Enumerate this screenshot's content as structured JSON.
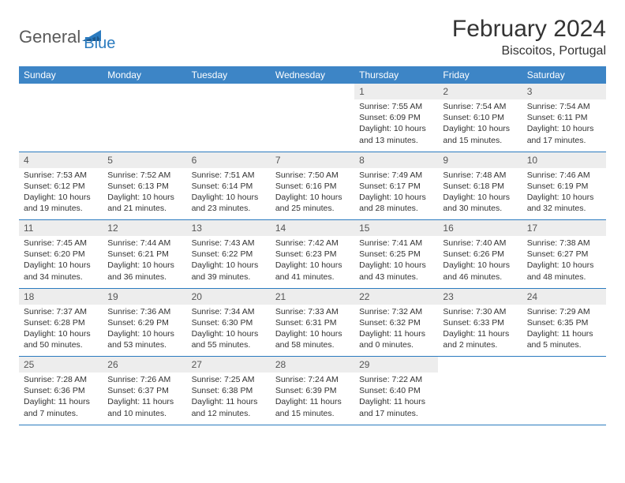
{
  "logo": {
    "text1": "General",
    "text2": "Blue"
  },
  "title": "February 2024",
  "location": "Biscoitos, Portugal",
  "colors": {
    "header_bg": "#3d85c6",
    "header_text": "#ffffff",
    "daynum_bg": "#ededed",
    "border": "#2b7bbf",
    "logo_gray": "#5a5a5a",
    "logo_blue": "#2b7bbf"
  },
  "weekdays": [
    "Sunday",
    "Monday",
    "Tuesday",
    "Wednesday",
    "Thursday",
    "Friday",
    "Saturday"
  ],
  "weeks": [
    {
      "nums": [
        "",
        "",
        "",
        "",
        "1",
        "2",
        "3"
      ],
      "cells": [
        null,
        null,
        null,
        null,
        {
          "sunrise": "Sunrise: 7:55 AM",
          "sunset": "Sunset: 6:09 PM",
          "day1": "Daylight: 10 hours",
          "day2": "and 13 minutes."
        },
        {
          "sunrise": "Sunrise: 7:54 AM",
          "sunset": "Sunset: 6:10 PM",
          "day1": "Daylight: 10 hours",
          "day2": "and 15 minutes."
        },
        {
          "sunrise": "Sunrise: 7:54 AM",
          "sunset": "Sunset: 6:11 PM",
          "day1": "Daylight: 10 hours",
          "day2": "and 17 minutes."
        }
      ]
    },
    {
      "nums": [
        "4",
        "5",
        "6",
        "7",
        "8",
        "9",
        "10"
      ],
      "cells": [
        {
          "sunrise": "Sunrise: 7:53 AM",
          "sunset": "Sunset: 6:12 PM",
          "day1": "Daylight: 10 hours",
          "day2": "and 19 minutes."
        },
        {
          "sunrise": "Sunrise: 7:52 AM",
          "sunset": "Sunset: 6:13 PM",
          "day1": "Daylight: 10 hours",
          "day2": "and 21 minutes."
        },
        {
          "sunrise": "Sunrise: 7:51 AM",
          "sunset": "Sunset: 6:14 PM",
          "day1": "Daylight: 10 hours",
          "day2": "and 23 minutes."
        },
        {
          "sunrise": "Sunrise: 7:50 AM",
          "sunset": "Sunset: 6:16 PM",
          "day1": "Daylight: 10 hours",
          "day2": "and 25 minutes."
        },
        {
          "sunrise": "Sunrise: 7:49 AM",
          "sunset": "Sunset: 6:17 PM",
          "day1": "Daylight: 10 hours",
          "day2": "and 28 minutes."
        },
        {
          "sunrise": "Sunrise: 7:48 AM",
          "sunset": "Sunset: 6:18 PM",
          "day1": "Daylight: 10 hours",
          "day2": "and 30 minutes."
        },
        {
          "sunrise": "Sunrise: 7:46 AM",
          "sunset": "Sunset: 6:19 PM",
          "day1": "Daylight: 10 hours",
          "day2": "and 32 minutes."
        }
      ]
    },
    {
      "nums": [
        "11",
        "12",
        "13",
        "14",
        "15",
        "16",
        "17"
      ],
      "cells": [
        {
          "sunrise": "Sunrise: 7:45 AM",
          "sunset": "Sunset: 6:20 PM",
          "day1": "Daylight: 10 hours",
          "day2": "and 34 minutes."
        },
        {
          "sunrise": "Sunrise: 7:44 AM",
          "sunset": "Sunset: 6:21 PM",
          "day1": "Daylight: 10 hours",
          "day2": "and 36 minutes."
        },
        {
          "sunrise": "Sunrise: 7:43 AM",
          "sunset": "Sunset: 6:22 PM",
          "day1": "Daylight: 10 hours",
          "day2": "and 39 minutes."
        },
        {
          "sunrise": "Sunrise: 7:42 AM",
          "sunset": "Sunset: 6:23 PM",
          "day1": "Daylight: 10 hours",
          "day2": "and 41 minutes."
        },
        {
          "sunrise": "Sunrise: 7:41 AM",
          "sunset": "Sunset: 6:25 PM",
          "day1": "Daylight: 10 hours",
          "day2": "and 43 minutes."
        },
        {
          "sunrise": "Sunrise: 7:40 AM",
          "sunset": "Sunset: 6:26 PM",
          "day1": "Daylight: 10 hours",
          "day2": "and 46 minutes."
        },
        {
          "sunrise": "Sunrise: 7:38 AM",
          "sunset": "Sunset: 6:27 PM",
          "day1": "Daylight: 10 hours",
          "day2": "and 48 minutes."
        }
      ]
    },
    {
      "nums": [
        "18",
        "19",
        "20",
        "21",
        "22",
        "23",
        "24"
      ],
      "cells": [
        {
          "sunrise": "Sunrise: 7:37 AM",
          "sunset": "Sunset: 6:28 PM",
          "day1": "Daylight: 10 hours",
          "day2": "and 50 minutes."
        },
        {
          "sunrise": "Sunrise: 7:36 AM",
          "sunset": "Sunset: 6:29 PM",
          "day1": "Daylight: 10 hours",
          "day2": "and 53 minutes."
        },
        {
          "sunrise": "Sunrise: 7:34 AM",
          "sunset": "Sunset: 6:30 PM",
          "day1": "Daylight: 10 hours",
          "day2": "and 55 minutes."
        },
        {
          "sunrise": "Sunrise: 7:33 AM",
          "sunset": "Sunset: 6:31 PM",
          "day1": "Daylight: 10 hours",
          "day2": "and 58 minutes."
        },
        {
          "sunrise": "Sunrise: 7:32 AM",
          "sunset": "Sunset: 6:32 PM",
          "day1": "Daylight: 11 hours",
          "day2": "and 0 minutes."
        },
        {
          "sunrise": "Sunrise: 7:30 AM",
          "sunset": "Sunset: 6:33 PM",
          "day1": "Daylight: 11 hours",
          "day2": "and 2 minutes."
        },
        {
          "sunrise": "Sunrise: 7:29 AM",
          "sunset": "Sunset: 6:35 PM",
          "day1": "Daylight: 11 hours",
          "day2": "and 5 minutes."
        }
      ]
    },
    {
      "nums": [
        "25",
        "26",
        "27",
        "28",
        "29",
        "",
        ""
      ],
      "cells": [
        {
          "sunrise": "Sunrise: 7:28 AM",
          "sunset": "Sunset: 6:36 PM",
          "day1": "Daylight: 11 hours",
          "day2": "and 7 minutes."
        },
        {
          "sunrise": "Sunrise: 7:26 AM",
          "sunset": "Sunset: 6:37 PM",
          "day1": "Daylight: 11 hours",
          "day2": "and 10 minutes."
        },
        {
          "sunrise": "Sunrise: 7:25 AM",
          "sunset": "Sunset: 6:38 PM",
          "day1": "Daylight: 11 hours",
          "day2": "and 12 minutes."
        },
        {
          "sunrise": "Sunrise: 7:24 AM",
          "sunset": "Sunset: 6:39 PM",
          "day1": "Daylight: 11 hours",
          "day2": "and 15 minutes."
        },
        {
          "sunrise": "Sunrise: 7:22 AM",
          "sunset": "Sunset: 6:40 PM",
          "day1": "Daylight: 11 hours",
          "day2": "and 17 minutes."
        },
        null,
        null
      ]
    }
  ]
}
